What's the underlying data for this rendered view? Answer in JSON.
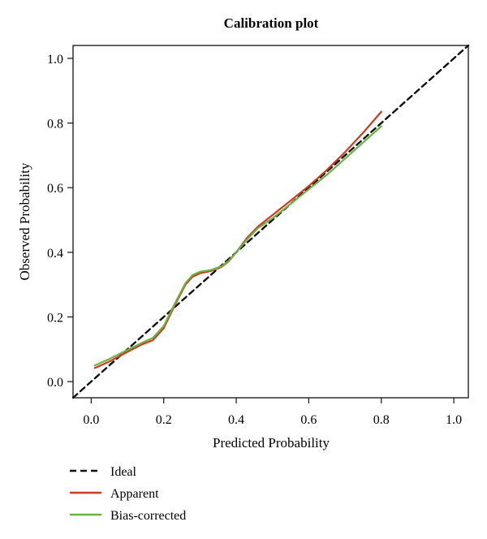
{
  "chart_data": {
    "type": "line",
    "title": "Calibration plot",
    "xlabel": "Predicted Probability",
    "ylabel": "Observed Probability",
    "xlim": [
      -0.05,
      1.04
    ],
    "ylim": [
      -0.05,
      1.04
    ],
    "xticks": [
      "0.0",
      "0.2",
      "0.4",
      "0.6",
      "0.8",
      "1.0"
    ],
    "yticks": [
      "0.0",
      "0.2",
      "0.4",
      "0.6",
      "0.8",
      "1.0"
    ],
    "grid": false,
    "legend_position": "bottom-left",
    "series": [
      {
        "name": "Ideal",
        "color": "#111111",
        "style": "dashed",
        "x": [
          -0.05,
          1.04
        ],
        "y": [
          -0.05,
          1.04
        ]
      },
      {
        "name": "Apparent",
        "color": "#d03a1e",
        "style": "solid",
        "x": [
          0.01,
          0.05,
          0.1,
          0.14,
          0.17,
          0.2,
          0.23,
          0.26,
          0.28,
          0.3,
          0.33,
          0.36,
          0.38,
          0.4,
          0.43,
          0.46,
          0.5,
          0.55,
          0.6,
          0.65,
          0.7,
          0.75,
          0.8
        ],
        "y": [
          0.042,
          0.062,
          0.092,
          0.115,
          0.128,
          0.165,
          0.235,
          0.3,
          0.325,
          0.335,
          0.342,
          0.355,
          0.373,
          0.4,
          0.445,
          0.48,
          0.515,
          0.56,
          0.605,
          0.655,
          0.71,
          0.77,
          0.835
        ]
      },
      {
        "name": "Bias-corrected",
        "color": "#6ab345",
        "style": "solid",
        "x": [
          0.01,
          0.05,
          0.1,
          0.14,
          0.17,
          0.2,
          0.23,
          0.26,
          0.28,
          0.3,
          0.33,
          0.36,
          0.38,
          0.4,
          0.43,
          0.46,
          0.5,
          0.55,
          0.6,
          0.65,
          0.7,
          0.75,
          0.8
        ],
        "y": [
          0.05,
          0.07,
          0.098,
          0.12,
          0.135,
          0.172,
          0.24,
          0.305,
          0.33,
          0.34,
          0.345,
          0.357,
          0.375,
          0.4,
          0.44,
          0.475,
          0.505,
          0.55,
          0.595,
          0.64,
          0.69,
          0.74,
          0.79
        ]
      }
    ]
  }
}
